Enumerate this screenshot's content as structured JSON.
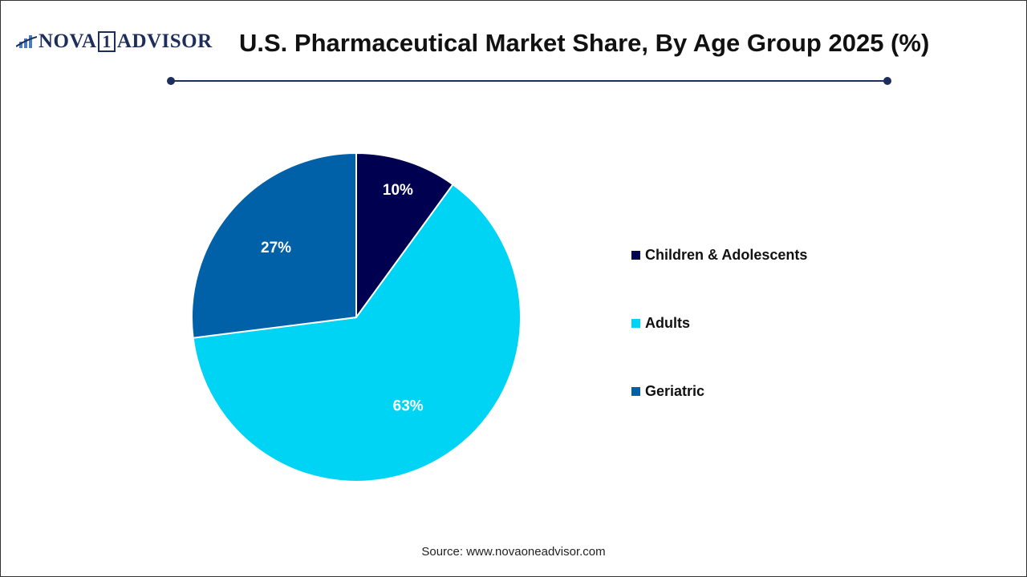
{
  "logo": {
    "text_left": "NOVA",
    "text_one": "1",
    "text_right": "ADVISOR"
  },
  "chart_data": {
    "type": "pie",
    "title": "U.S. Pharmaceutical Market Share, By Age Group 2025 (%)",
    "categories": [
      "Children & Adolescents",
      "Adults",
      "Geriatric"
    ],
    "values": [
      10,
      63,
      27
    ],
    "data_labels": [
      "10%",
      "63%",
      "27%"
    ],
    "colors": [
      "#000050",
      "#00d4f5",
      "#0060a8"
    ],
    "start_angle": "12 o'clock",
    "direction": "clockwise",
    "legend_position": "right"
  },
  "source": "Source: www.novaoneadvisor.com"
}
